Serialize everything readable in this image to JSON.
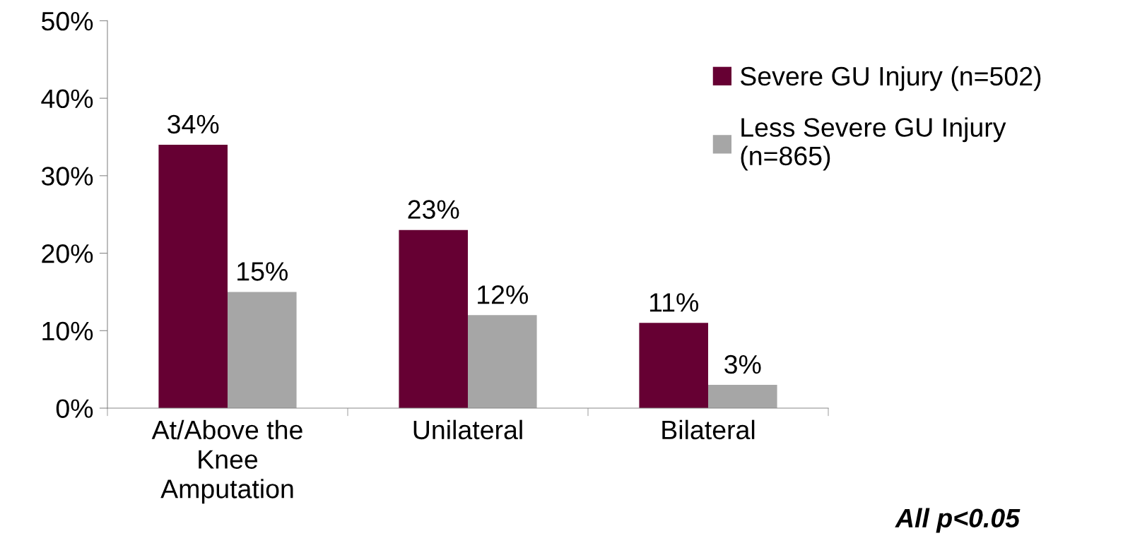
{
  "chart_data": {
    "type": "bar",
    "categories": [
      "At/Above the\nKnee\nAmputation",
      "Unilateral",
      "Bilateral"
    ],
    "series": [
      {
        "name": "Severe GU Injury (n=502)",
        "color": "#660033",
        "values": [
          34,
          23,
          11
        ]
      },
      {
        "name": "Less Severe GU Injury\n(n=865)",
        "color": "#a6a6a6",
        "values": [
          15,
          12,
          3
        ]
      }
    ],
    "ylim": [
      0,
      50
    ],
    "yticks": [
      {
        "value": 0,
        "label": "0%"
      },
      {
        "value": 10,
        "label": "10%"
      },
      {
        "value": 20,
        "label": "20%"
      },
      {
        "value": 30,
        "label": "30%"
      },
      {
        "value": 40,
        "label": "40%"
      },
      {
        "value": 50,
        "label": "50%"
      }
    ],
    "value_labels": [
      [
        "34%",
        "23%",
        "11%"
      ],
      [
        "15%",
        "12%",
        "3%"
      ]
    ],
    "legend": "top right",
    "grid": false,
    "annotations": [
      "All p<0.05"
    ]
  }
}
